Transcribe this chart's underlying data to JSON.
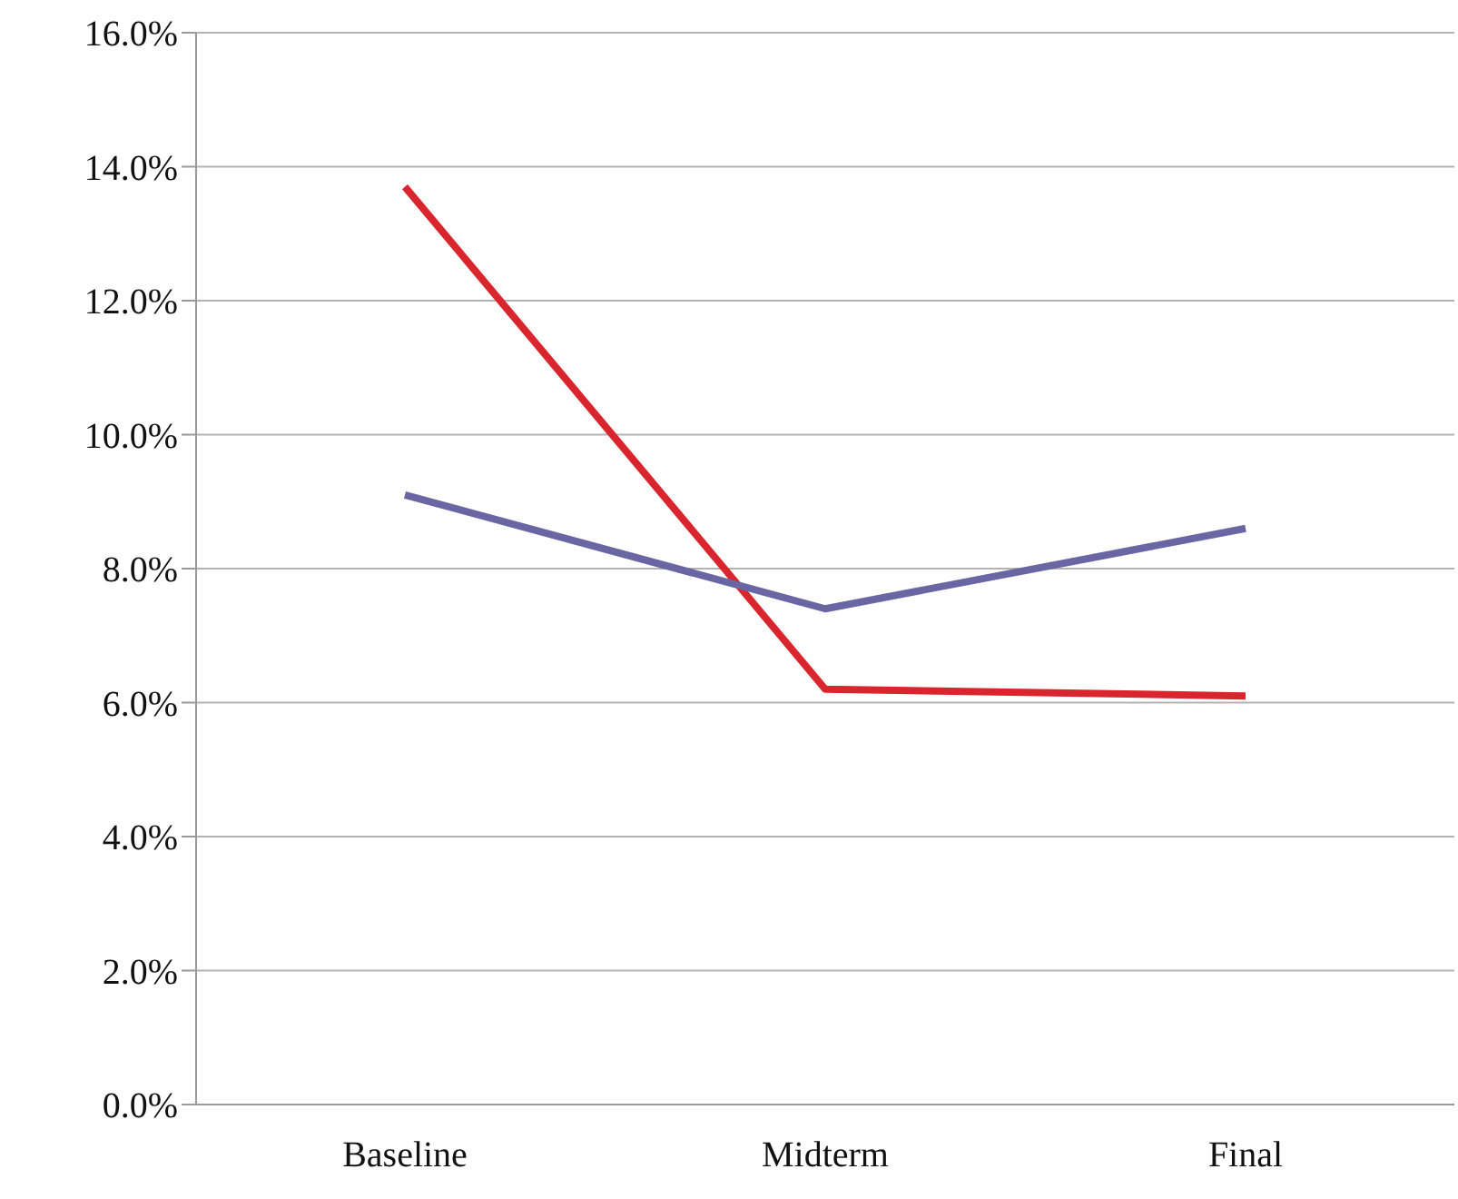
{
  "chart_data": {
    "type": "line",
    "categories": [
      "Baseline",
      "Midterm",
      "Final"
    ],
    "series": [
      {
        "color": "#d9262e",
        "values": [
          13.7,
          6.2,
          6.1
        ]
      },
      {
        "color": "#6a66a3",
        "values": [
          9.1,
          7.4,
          8.6
        ]
      }
    ],
    "ylim": [
      0,
      16
    ],
    "yticks": [
      {
        "value": 0,
        "label": "0.0%"
      },
      {
        "value": 2,
        "label": "2.0%"
      },
      {
        "value": 4,
        "label": "4.0%"
      },
      {
        "value": 6,
        "label": "6.0%"
      },
      {
        "value": 8,
        "label": "8.0%"
      },
      {
        "value": 10,
        "label": "10.0%"
      },
      {
        "value": 12,
        "label": "12.0%"
      },
      {
        "value": 14,
        "label": "14.0%"
      },
      {
        "value": 16,
        "label": "16.0%"
      }
    ],
    "grid": "y",
    "marker": "none"
  }
}
